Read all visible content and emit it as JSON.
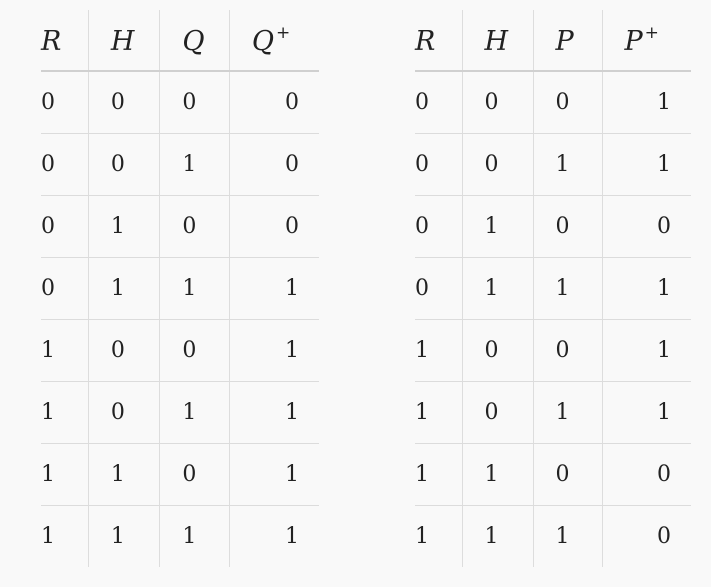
{
  "left_table": {
    "headers": [
      {
        "var": "R",
        "sup": ""
      },
      {
        "var": "H",
        "sup": ""
      },
      {
        "var": "Q",
        "sup": ""
      },
      {
        "var": "Q",
        "sup": "+"
      }
    ],
    "rows": [
      [
        "0",
        "0",
        "0",
        "0"
      ],
      [
        "0",
        "0",
        "1",
        "0"
      ],
      [
        "0",
        "1",
        "0",
        "0"
      ],
      [
        "0",
        "1",
        "1",
        "1"
      ],
      [
        "1",
        "0",
        "0",
        "1"
      ],
      [
        "1",
        "0",
        "1",
        "1"
      ],
      [
        "1",
        "1",
        "0",
        "1"
      ],
      [
        "1",
        "1",
        "1",
        "1"
      ]
    ]
  },
  "right_table": {
    "headers": [
      {
        "var": "R",
        "sup": ""
      },
      {
        "var": "H",
        "sup": ""
      },
      {
        "var": "P",
        "sup": ""
      },
      {
        "var": "P",
        "sup": "+"
      }
    ],
    "rows": [
      [
        "0",
        "0",
        "0",
        "1"
      ],
      [
        "0",
        "0",
        "1",
        "1"
      ],
      [
        "0",
        "1",
        "0",
        "0"
      ],
      [
        "0",
        "1",
        "1",
        "1"
      ],
      [
        "1",
        "0",
        "0",
        "1"
      ],
      [
        "1",
        "0",
        "1",
        "1"
      ],
      [
        "1",
        "1",
        "0",
        "0"
      ],
      [
        "1",
        "1",
        "1",
        "0"
      ]
    ]
  }
}
